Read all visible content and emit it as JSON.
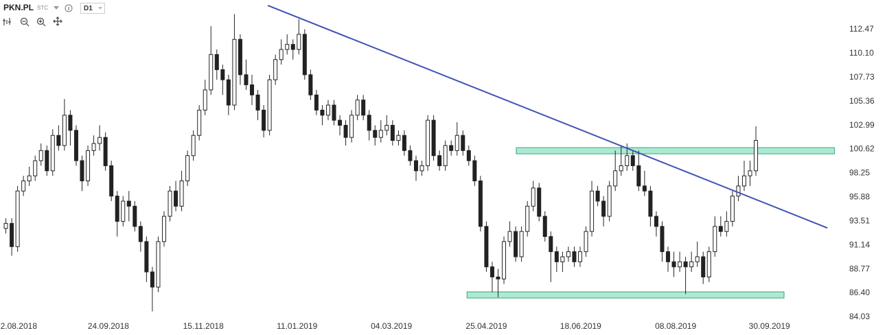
{
  "toolbar": {
    "symbol": "PKN.PL",
    "type": "STC",
    "interval": "D1"
  },
  "chart_data": {
    "type": "candlestick",
    "x": [
      0,
      1,
      2,
      3,
      4,
      5,
      6,
      7,
      8,
      9,
      10,
      11,
      12,
      13,
      14,
      15,
      16,
      17,
      18,
      19,
      20,
      21,
      22,
      23,
      24,
      25,
      26,
      27,
      28,
      29,
      30,
      31,
      32,
      33,
      34,
      35,
      36,
      37,
      38,
      39,
      40,
      41,
      42,
      43,
      44,
      45,
      46,
      47,
      48,
      49,
      50,
      51,
      52,
      53,
      54,
      55,
      56,
      57,
      58,
      59,
      60,
      61,
      62,
      63,
      64,
      65,
      66,
      67,
      68,
      69,
      70,
      71,
      72,
      73,
      74,
      75,
      76,
      77,
      78,
      79,
      80,
      81,
      82,
      83,
      84,
      85,
      86,
      87,
      88,
      89,
      90,
      91,
      92,
      93,
      94,
      95,
      96,
      97,
      98,
      99,
      100,
      101,
      102,
      103,
      104,
      105,
      106,
      107,
      108,
      109,
      110,
      111,
      112,
      113,
      114,
      115,
      116,
      117,
      118,
      119,
      120,
      121,
      122,
      123,
      124,
      125,
      126,
      127,
      128
    ],
    "open": [
      92.8,
      93.3,
      91.0,
      96.5,
      97.5,
      98.0,
      99.5,
      100.5,
      98.5,
      102.0,
      101.0,
      104.0,
      102.5,
      99.5,
      97.5,
      100.5,
      101.2,
      101.8,
      99.0,
      96.0,
      93.5,
      95.5,
      95.0,
      93.0,
      91.5,
      88.5,
      87.0,
      91.5,
      94.0,
      96.5,
      95.0,
      97.5,
      100.0,
      102.0,
      104.5,
      106.5,
      110.0,
      108.5,
      107.5,
      105.0,
      111.5,
      108.0,
      107.0,
      106.0,
      104.5,
      102.5,
      107.5,
      109.5,
      110.5,
      111.0,
      110.5,
      112.0,
      108.0,
      106.0,
      104.5,
      104.0,
      105.0,
      103.5,
      103.0,
      101.8,
      104.0,
      105.5,
      104.0,
      102.5,
      101.8,
      102.5,
      103.0,
      101.5,
      102.0,
      100.5,
      99.5,
      98.5,
      99.0,
      103.5,
      100.0,
      99.0,
      101.0,
      100.5,
      102.0,
      100.5,
      99.5,
      97.5,
      93.0,
      89.0,
      88.0,
      87.8,
      91.5,
      92.5,
      90.0,
      92.5,
      95.0,
      96.8,
      94.0,
      92.0,
      90.5,
      89.5,
      90.0,
      90.5,
      89.5,
      90.5,
      92.5,
      96.5,
      95.5,
      94.0,
      97.0,
      98.5,
      99.0,
      100.0,
      99.0,
      97.0,
      96.5,
      94.0,
      93.0,
      90.5,
      89.5,
      89.0,
      89.5,
      89.0,
      89.5,
      90.0,
      88.0,
      90.5,
      93.0,
      92.5,
      93.5,
      96.0,
      97.0,
      98.0,
      98.5
    ],
    "high": [
      93.8,
      93.8,
      97.0,
      98.0,
      98.9,
      100.0,
      101.2,
      101.0,
      102.6,
      103.0,
      105.6,
      104.5,
      103.0,
      100.0,
      101.0,
      102.0,
      103.0,
      102.3,
      99.5,
      96.5,
      96.0,
      96.5,
      95.5,
      93.5,
      92.0,
      89.0,
      92.0,
      94.5,
      97.0,
      97.5,
      98.5,
      100.5,
      102.5,
      105.0,
      107.5,
      112.8,
      110.5,
      109.0,
      108.0,
      114.0,
      112.0,
      109.5,
      108.0,
      106.5,
      105.0,
      108.0,
      110.0,
      111.5,
      112.0,
      111.5,
      113.5,
      112.5,
      108.5,
      106.5,
      105.0,
      105.5,
      105.5,
      104.0,
      103.5,
      104.5,
      106.0,
      106.0,
      104.5,
      103.0,
      103.5,
      104.0,
      103.5,
      102.5,
      102.5,
      101.0,
      100.0,
      99.5,
      104.0,
      104.0,
      100.5,
      101.5,
      101.5,
      103.3,
      102.5,
      101.0,
      100.0,
      98.0,
      93.5,
      89.5,
      88.8,
      92.0,
      93.5,
      93.0,
      93.0,
      95.5,
      97.5,
      97.3,
      94.5,
      92.5,
      91.0,
      90.5,
      91.0,
      91.0,
      91.0,
      93.0,
      97.5,
      97.0,
      96.0,
      97.5,
      100.5,
      101.0,
      101.2,
      100.5,
      100.5,
      98.5,
      97.0,
      94.5,
      93.5,
      91.0,
      90.5,
      90.5,
      90.0,
      90.5,
      91.5,
      90.5,
      91.0,
      94.0,
      94.0,
      94.5,
      96.5,
      98.0,
      99.5,
      99.5,
      102.9
    ],
    "low": [
      92.3,
      90.1,
      90.5,
      96.0,
      97.0,
      97.5,
      99.0,
      98.0,
      98.0,
      100.5,
      100.5,
      101.0,
      99.0,
      96.5,
      97.0,
      100.0,
      100.5,
      98.5,
      95.5,
      92.0,
      93.0,
      93.5,
      92.5,
      90.5,
      87.5,
      84.6,
      86.5,
      91.0,
      93.5,
      94.5,
      94.5,
      97.0,
      99.5,
      101.5,
      104.0,
      106.0,
      107.5,
      106.0,
      104.0,
      104.5,
      107.0,
      106.5,
      105.0,
      103.5,
      101.8,
      102.0,
      107.0,
      109.0,
      110.0,
      109.5,
      110.0,
      107.5,
      105.5,
      104.0,
      103.0,
      103.5,
      103.0,
      102.0,
      101.0,
      101.3,
      103.5,
      103.5,
      101.5,
      101.0,
      101.3,
      102.0,
      101.0,
      101.0,
      100.0,
      99.0,
      97.5,
      98.0,
      98.5,
      99.5,
      98.5,
      98.5,
      100.0,
      100.0,
      100.0,
      99.0,
      97.0,
      92.5,
      88.5,
      86.5,
      86.0,
      87.3,
      91.0,
      89.5,
      89.5,
      92.0,
      94.5,
      93.5,
      91.5,
      87.5,
      88.5,
      88.5,
      89.5,
      89.0,
      89.0,
      90.0,
      92.0,
      95.0,
      93.0,
      93.5,
      96.5,
      98.0,
      98.5,
      98.5,
      96.5,
      96.0,
      93.0,
      92.0,
      89.5,
      88.5,
      88.0,
      88.5,
      86.3,
      88.5,
      89.0,
      87.3,
      87.5,
      90.0,
      92.0,
      92.0,
      93.0,
      95.5,
      96.5,
      97.0,
      98.0
    ],
    "close": [
      93.3,
      91.0,
      96.5,
      97.5,
      98.0,
      99.5,
      100.5,
      98.5,
      102.0,
      101.0,
      104.0,
      102.5,
      99.5,
      97.5,
      100.5,
      101.2,
      101.8,
      99.0,
      96.0,
      93.5,
      95.5,
      95.0,
      93.0,
      91.5,
      88.5,
      87.0,
      91.5,
      94.0,
      96.5,
      95.0,
      97.5,
      100.0,
      102.0,
      104.5,
      106.5,
      110.0,
      108.5,
      107.5,
      105.0,
      111.5,
      108.0,
      107.0,
      106.0,
      104.5,
      102.5,
      107.5,
      109.5,
      110.5,
      111.0,
      110.5,
      112.0,
      108.0,
      106.0,
      104.5,
      104.0,
      105.0,
      103.5,
      103.0,
      101.8,
      104.0,
      105.5,
      104.0,
      102.5,
      101.8,
      102.5,
      103.0,
      101.5,
      102.0,
      100.5,
      99.5,
      98.5,
      99.0,
      103.5,
      100.0,
      99.0,
      101.0,
      100.5,
      102.0,
      100.5,
      99.5,
      97.5,
      93.0,
      89.0,
      88.0,
      87.8,
      91.5,
      92.5,
      90.0,
      92.5,
      95.0,
      96.8,
      94.0,
      92.0,
      90.5,
      89.5,
      90.0,
      90.5,
      89.5,
      90.5,
      92.5,
      96.5,
      95.5,
      94.0,
      97.0,
      98.5,
      99.0,
      100.0,
      99.0,
      97.0,
      96.5,
      94.0,
      93.0,
      90.5,
      89.5,
      89.0,
      89.5,
      89.0,
      89.5,
      90.0,
      88.0,
      90.5,
      93.0,
      92.5,
      93.5,
      96.0,
      97.0,
      98.0,
      98.5,
      101.5
    ],
    "up_color": "#ffffff",
    "down_color": "#222222",
    "wick_color": "#222222",
    "xlim": [
      -1,
      141
    ],
    "xticks": [
      {
        "value": 2.2,
        "label": "2.08.2018"
      },
      {
        "value": 17.5,
        "label": "24.09.2018"
      },
      {
        "value": 33.7,
        "label": "15.11.2018"
      },
      {
        "value": 49.7,
        "label": "11.01.2019"
      },
      {
        "value": 65.8,
        "label": "04.03.2019"
      },
      {
        "value": 82,
        "label": "25.04.2019"
      },
      {
        "value": 98.1,
        "label": "18.06.2019"
      },
      {
        "value": 114.3,
        "label": "08.08.2019"
      },
      {
        "value": 130.3,
        "label": "30.09.2019"
      }
    ],
    "ylim": [
      82.26,
      115.39
    ],
    "yticks": [
      112.47,
      {
        "value": 110.1,
        "label": "110.10"
      },
      107.73,
      105.36,
      102.99,
      100.62,
      98.25,
      95.88,
      93.51,
      91.14,
      88.77,
      {
        "value": 86.4,
        "label": "86.40"
      },
      84.03
    ],
    "trendline": {
      "x": [
        44.7,
        140.2
      ],
      "y": [
        114.85,
        92.85
      ],
      "color": "#3f51b5"
    },
    "zones": [
      {
        "x": [
          87.1,
          141.4
        ],
        "y": [
          100.18,
          100.79
        ],
        "color": "#9ee6c9"
      },
      {
        "x": [
          78.7,
          132.8
        ],
        "y": [
          85.92,
          86.53
        ],
        "color": "#9ee6c9"
      }
    ]
  }
}
